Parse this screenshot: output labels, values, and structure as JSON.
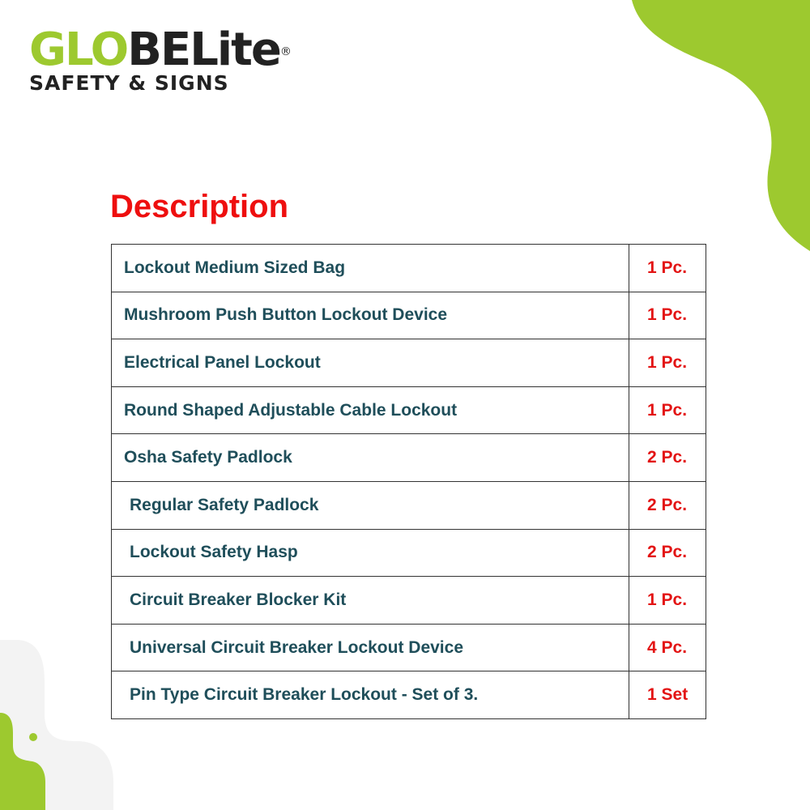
{
  "logo": {
    "part_green": "GLO",
    "part_dark": "BELite",
    "registered": "®",
    "tagline": "SAFETY & SIGNS"
  },
  "title": "Description",
  "items": [
    {
      "name": "Lockout Medium Sized Bag",
      "qty": "1 Pc."
    },
    {
      "name": "Mushroom Push Button Lockout Device",
      "qty": "1 Pc."
    },
    {
      "name": "Electrical Panel Lockout",
      "qty": "1 Pc."
    },
    {
      "name": "Round Shaped Adjustable Cable Lockout",
      "qty": "1 Pc."
    },
    {
      "name": "Osha Safety Padlock",
      "qty": "2 Pc."
    },
    {
      "name": " Regular Safety Padlock",
      "qty": "2 Pc."
    },
    {
      "name": " Lockout Safety Hasp",
      "qty": "2 Pc."
    },
    {
      "name": " Circuit Breaker Blocker Kit",
      "qty": "1 Pc."
    },
    {
      "name": " Universal Circuit Breaker Lockout Device",
      "qty": "4 Pc."
    },
    {
      "name": " Pin Type Circuit Breaker Lockout - Set of 3.",
      "qty": "1 Set"
    }
  ],
  "colors": {
    "accent_green": "#9dc92f",
    "title_red": "#ee0f0f",
    "text_teal": "#1f4e5a"
  }
}
